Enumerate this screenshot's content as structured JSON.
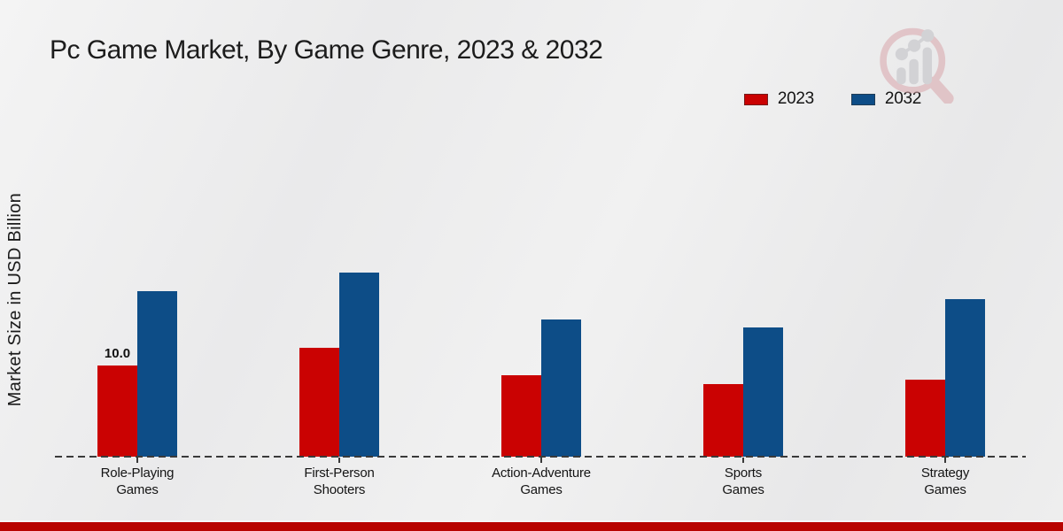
{
  "header": {
    "title": "Pc Game Market, By Game Genre, 2023 & 2032"
  },
  "chart_data": {
    "type": "bar",
    "title": "Pc Game Market, By Game Genre, 2023 & 2032",
    "xlabel": "",
    "ylabel": "Market Size in USD Billion",
    "categories": [
      "Role-Playing\nGames",
      "First-Person\nShooters",
      "Action-Adventure\nGames",
      "Sports\nGames",
      "Strategy\nGames"
    ],
    "series": [
      {
        "name": "2023",
        "color": "#ca0202",
        "values": [
          10.0,
          12.0,
          9.0,
          8.0,
          8.5
        ],
        "data_labels": [
          "10.0",
          null,
          null,
          null,
          null
        ]
      },
      {
        "name": "2032",
        "color": "#0d4d87",
        "values": [
          18.2,
          20.3,
          15.1,
          14.2,
          17.4
        ],
        "data_labels": [
          null,
          null,
          null,
          null,
          null
        ]
      }
    ],
    "ylim": [
      0,
      22
    ],
    "grid": false,
    "legend_position": "top-right",
    "baseline_style": "dashed",
    "y_axis_ticks_visible": false
  },
  "branding": {
    "logo_icon": "magnifying-glass-growth-chart",
    "accent_bar_color": "#b80400",
    "logo_ring_color": "#d9a6ab",
    "logo_bars_color": "#bfbfc4"
  }
}
